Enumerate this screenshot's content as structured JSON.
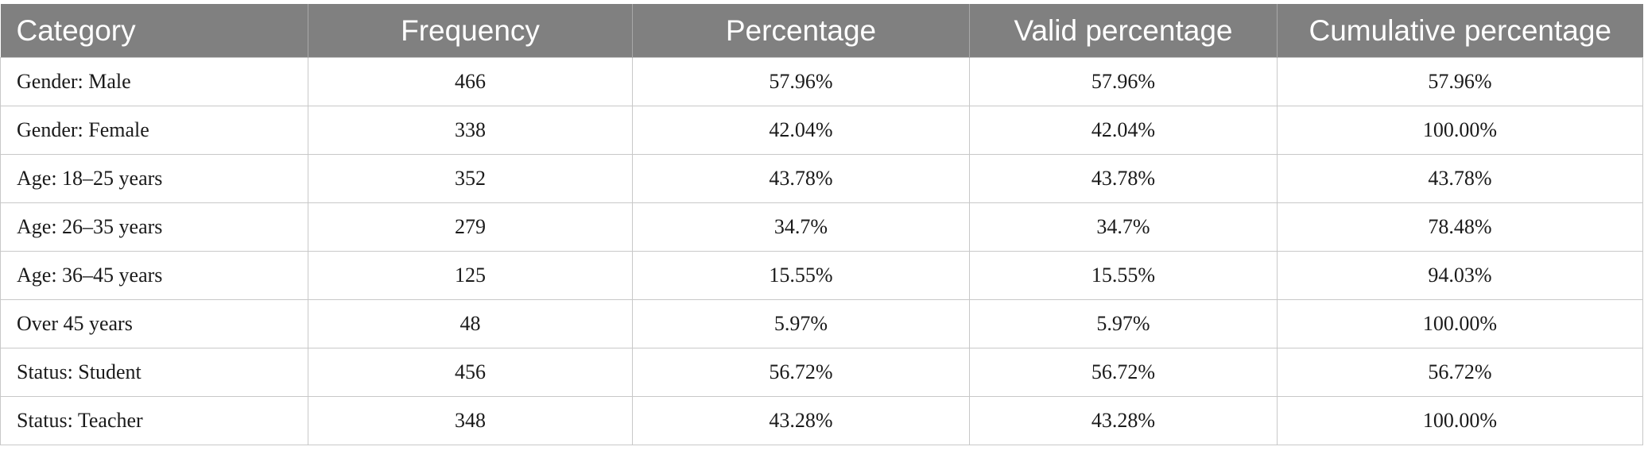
{
  "table": {
    "headers": [
      "Category",
      "Frequency",
      "Percentage",
      "Valid percentage",
      "Cumulative percentage"
    ],
    "rows": [
      [
        "Gender: Male",
        "466",
        "57.96%",
        "57.96%",
        "57.96%"
      ],
      [
        "Gender: Female",
        "338",
        "42.04%",
        "42.04%",
        "100.00%"
      ],
      [
        "Age: 18–25 years",
        "352",
        "43.78%",
        "43.78%",
        "43.78%"
      ],
      [
        "Age: 26–35 years",
        "279",
        "34.7%",
        "34.7%",
        "78.48%"
      ],
      [
        "Age: 36–45 years",
        "125",
        "15.55%",
        "15.55%",
        "94.03%"
      ],
      [
        "Over 45 years",
        "48",
        "5.97%",
        "5.97%",
        "100.00%"
      ],
      [
        "Status: Student",
        "456",
        "56.72%",
        "56.72%",
        "56.72%"
      ],
      [
        "Status: Teacher",
        "348",
        "43.28%",
        "43.28%",
        "100.00%"
      ]
    ]
  }
}
